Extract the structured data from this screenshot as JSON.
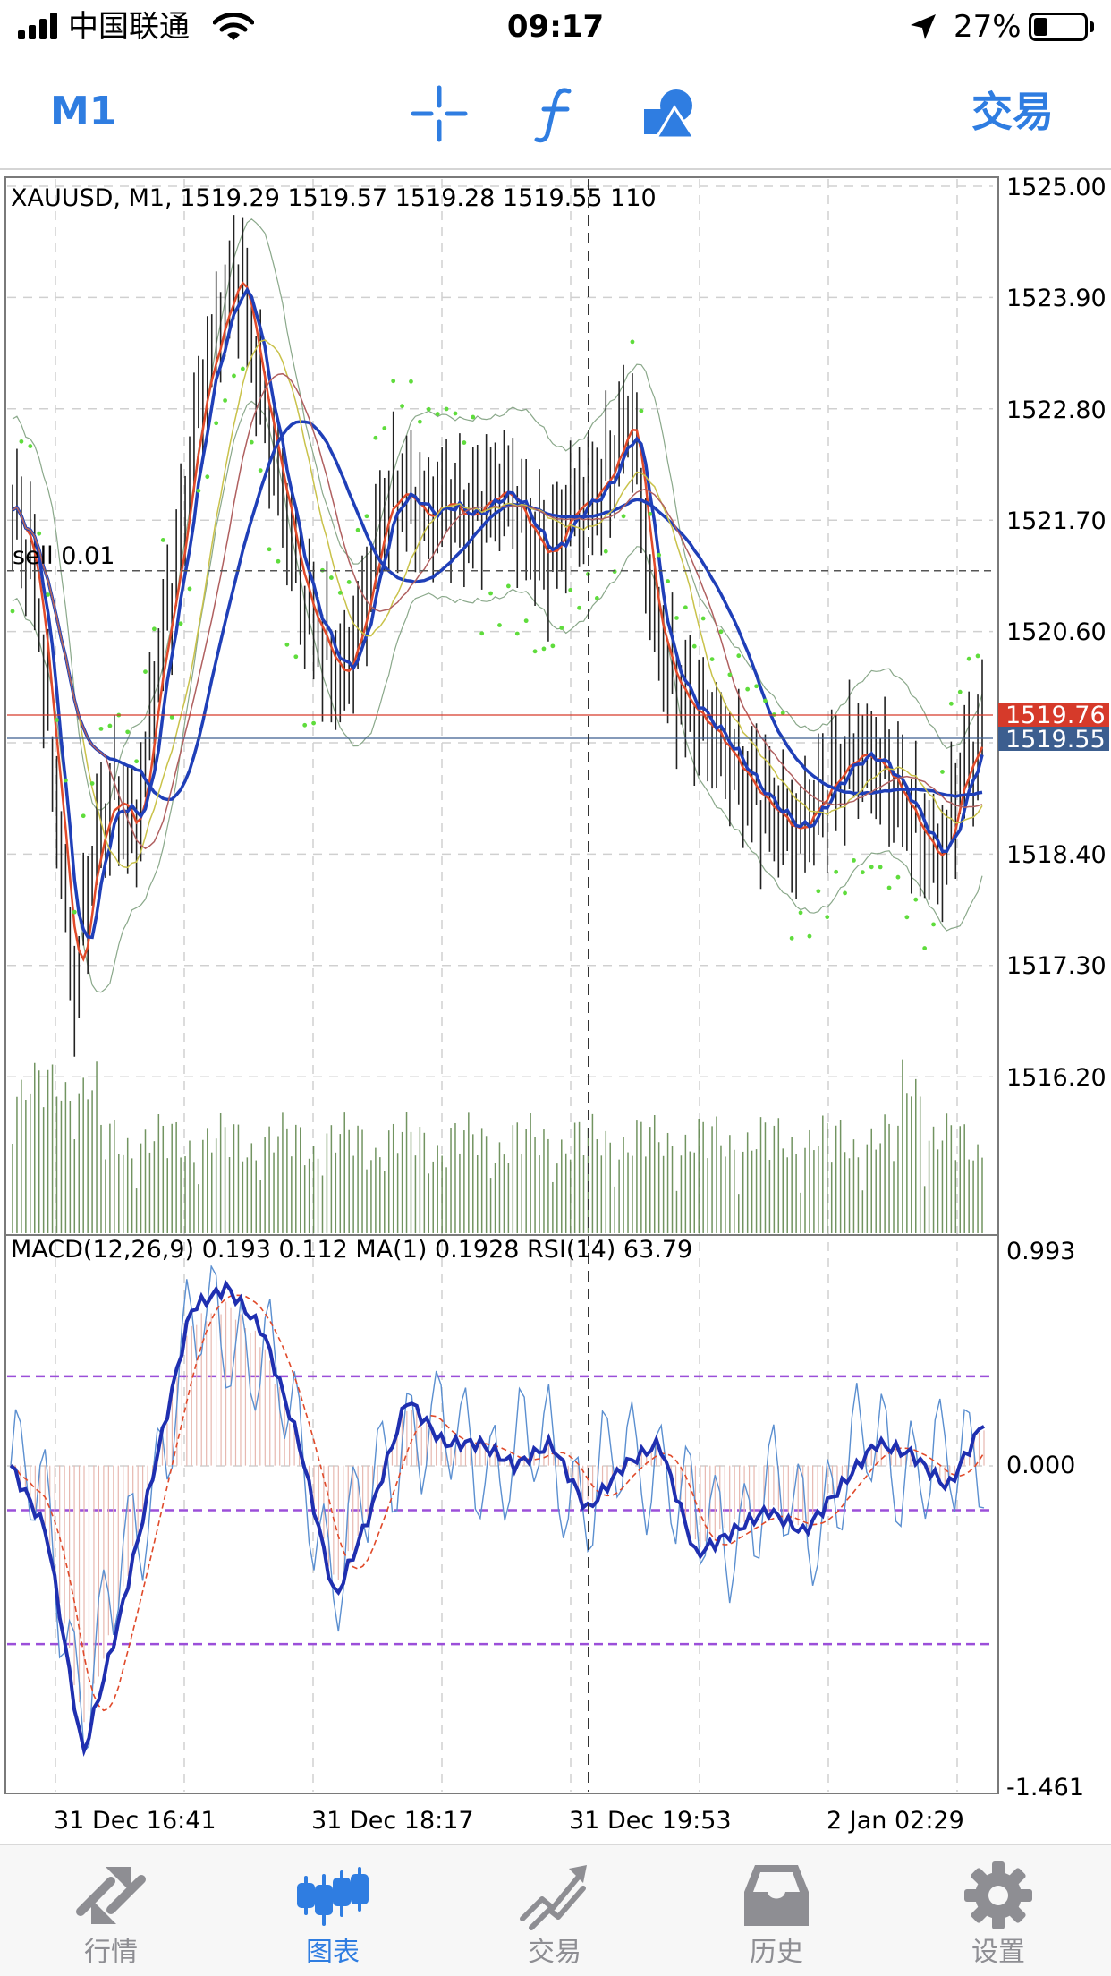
{
  "status_bar": {
    "carrier": "中国联通",
    "time": "09:17",
    "battery_percent": "27%",
    "battery_level": 0.27
  },
  "toolbar": {
    "timeframe": "M1",
    "icons": [
      "crosshair-icon",
      "function-icon",
      "objects-icon"
    ],
    "trade_label": "交易",
    "accent_color": "#2f7de1"
  },
  "chart": {
    "header": "XAUUSD, M1, 1519.29 1519.57 1519.28 1519.55 110",
    "order_line_label": "sell 0.01",
    "order_price": 1521.2,
    "indicator_header": "MACD(12,26,9) 0.193 0.112 MA(1) 0.1928 RSI(14) 63.79",
    "price_axis_ticks": [
      "1525.00",
      "1523.90",
      "1522.80",
      "1521.70",
      "1520.60",
      "1518.40",
      "1517.30",
      "1516.20"
    ],
    "ask_label": "1519.76",
    "bid_label": "1519.55",
    "ask_color": "#d63a2a",
    "bid_color": "#3c5e8f",
    "indicator_axis_ticks": [
      "0.993",
      "0.000",
      "-1.461"
    ],
    "time_axis_ticks": [
      "31 Dec 16:41",
      "31 Dec 18:17",
      "31 Dec 19:53",
      "2 Jan 02:29"
    ]
  },
  "chart_data": {
    "type": "line",
    "symbol": "XAUUSD",
    "timeframe": "M1",
    "ohlcv": {
      "open": 1519.29,
      "high": 1519.57,
      "low": 1519.28,
      "close": 1519.55,
      "volume": 110
    },
    "x_ticks": [
      "31 Dec 16:41",
      "31 Dec 18:17",
      "31 Dec 19:53",
      "2 Jan 02:29"
    ],
    "ylim": [
      1515.3,
      1525.0
    ],
    "close_series": [
      1521.8,
      1521.3,
      1519.2,
      1517.0,
      1518.5,
      1519.0,
      1518.6,
      1520.2,
      1521.3,
      1522.8,
      1523.6,
      1524.2,
      1523.0,
      1522.0,
      1521.0,
      1520.5,
      1520.1,
      1520.8,
      1521.8,
      1522.0,
      1521.7,
      1521.9,
      1521.7,
      1521.9,
      1522.0,
      1521.6,
      1521.3,
      1521.8,
      1521.9,
      1522.2,
      1522.8,
      1520.8,
      1520.1,
      1519.8,
      1519.6,
      1519.3,
      1519.0,
      1518.8,
      1518.6,
      1518.9,
      1519.2,
      1519.4,
      1519.3,
      1519.0,
      1518.6,
      1518.3,
      1519.2,
      1519.55
    ],
    "indicator": {
      "name": "MACD(12,26,9)",
      "ylim": [
        -1.461,
        0.993
      ],
      "macd": [
        0.0,
        -0.3,
        -1.3,
        -0.7,
        0.0,
        0.7,
        0.8,
        0.6,
        0.1,
        -0.6,
        -0.2,
        0.3,
        0.1,
        0.1,
        0.0,
        0.1,
        -0.2,
        0.0,
        0.1,
        -0.4,
        -0.3,
        -0.2,
        -0.3,
        -0.1,
        0.1,
        0.05,
        -0.1,
        0.2
      ],
      "levels": [
        0.4,
        -0.2,
        -0.8
      ]
    }
  },
  "tab_bar": {
    "tabs": [
      {
        "label": "行情",
        "icon": "quotes-icon"
      },
      {
        "label": "图表",
        "icon": "chart-icon"
      },
      {
        "label": "交易",
        "icon": "trade-icon"
      },
      {
        "label": "历史",
        "icon": "history-icon"
      },
      {
        "label": "设置",
        "icon": "settings-icon"
      }
    ],
    "active_index": 1
  }
}
